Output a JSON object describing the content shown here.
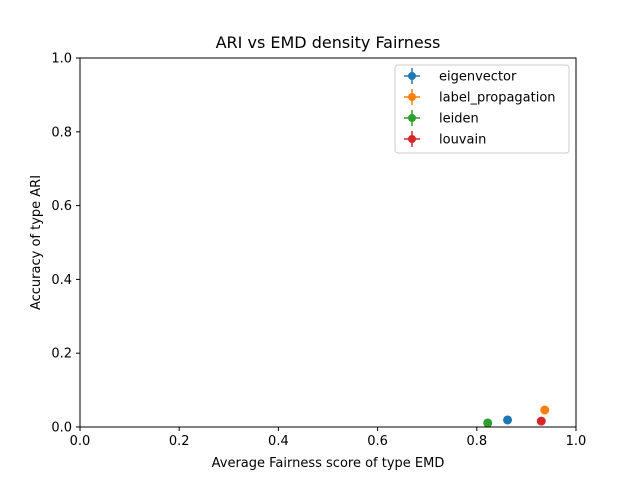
{
  "chart_data": {
    "type": "scatter",
    "title": "ARI vs EMD density Fairness",
    "xlabel": "Average Fairness score of type EMD",
    "ylabel": "Accuracy of type ARI",
    "xlim": [
      0.0,
      1.0
    ],
    "ylim": [
      0.0,
      1.0
    ],
    "xticks": [
      "0.0",
      "0.2",
      "0.4",
      "0.6",
      "0.8",
      "1.0"
    ],
    "yticks": [
      "0.0",
      "0.2",
      "0.4",
      "0.6",
      "0.8",
      "1.0"
    ],
    "grid": false,
    "legend_position": "top-right",
    "series": [
      {
        "name": "eigenvector",
        "color": "#1f77b4",
        "x": 0.862,
        "y": 0.019
      },
      {
        "name": "label_propagation",
        "color": "#ff7f0e",
        "x": 0.937,
        "y": 0.046
      },
      {
        "name": "leiden",
        "color": "#2ca02c",
        "x": 0.822,
        "y": 0.011
      },
      {
        "name": "louvain",
        "color": "#d62728",
        "x": 0.93,
        "y": 0.016
      }
    ]
  }
}
